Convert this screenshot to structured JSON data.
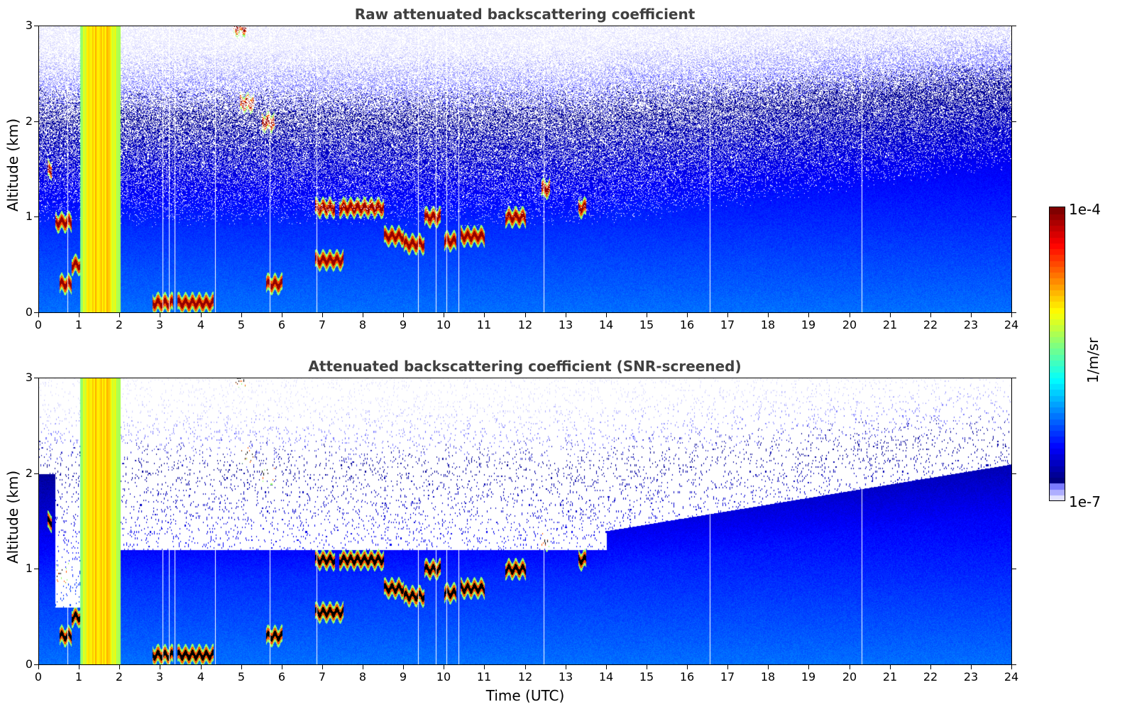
{
  "chart_data": [
    {
      "type": "heatmap",
      "title": "Raw attenuated backscattering coefficient",
      "xlabel": "",
      "ylabel": "Altitude (km)",
      "xlim": [
        0,
        24
      ],
      "ylim": [
        0,
        3
      ],
      "x_ticks": [
        "0",
        "1",
        "2",
        "3",
        "4",
        "5",
        "6",
        "7",
        "8",
        "9",
        "10",
        "11",
        "12",
        "13",
        "14",
        "15",
        "16",
        "17",
        "18",
        "19",
        "20",
        "21",
        "22",
        "23",
        "24"
      ],
      "y_ticks": [
        "0",
        "1",
        "2",
        "3"
      ],
      "screened": false,
      "features": {
        "precip_band": [
          1.0,
          2.0
        ],
        "gaps": [
          0.7,
          3.05,
          3.2,
          3.35,
          4.35,
          5.7,
          6.85,
          9.35,
          9.8,
          10.05,
          10.35,
          12.45,
          16.55,
          20.3
        ],
        "cloud_layers": [
          {
            "t": [
              0.2,
              0.3
            ],
            "alt": 1.5
          },
          {
            "t": [
              0.4,
              0.8
            ],
            "alt": 0.95
          },
          {
            "t": [
              0.8,
              1.0
            ],
            "alt": 0.5
          },
          {
            "t": [
              0.5,
              0.8
            ],
            "alt": 0.3
          },
          {
            "t": [
              2.8,
              3.3
            ],
            "alt": 0.1
          },
          {
            "t": [
              3.4,
              4.3
            ],
            "alt": 0.1
          },
          {
            "t": [
              4.95,
              5.3
            ],
            "alt": 2.2
          },
          {
            "t": [
              5.5,
              5.8
            ],
            "alt": 2.0
          },
          {
            "t": [
              5.6,
              6.0
            ],
            "alt": 0.3
          },
          {
            "t": [
              4.8,
              5.1
            ],
            "alt": 3.0
          },
          {
            "t": [
              6.8,
              7.5
            ],
            "alt": 0.55
          },
          {
            "t": [
              6.8,
              7.3
            ],
            "alt": 1.1
          },
          {
            "t": [
              7.4,
              8.5
            ],
            "alt": 1.1
          },
          {
            "t": [
              8.5,
              9.0
            ],
            "alt": 0.8
          },
          {
            "t": [
              9.0,
              9.5
            ],
            "alt": 0.72
          },
          {
            "t": [
              9.5,
              9.9
            ],
            "alt": 1.0
          },
          {
            "t": [
              10.0,
              10.3
            ],
            "alt": 0.75
          },
          {
            "t": [
              10.4,
              11.0
            ],
            "alt": 0.8
          },
          {
            "t": [
              11.5,
              12.0
            ],
            "alt": 1.0
          },
          {
            "t": [
              12.4,
              12.6
            ],
            "alt": 1.3
          },
          {
            "t": [
              13.3,
              13.5
            ],
            "alt": 1.1
          }
        ]
      }
    },
    {
      "type": "heatmap",
      "title": "Attenuated backscattering coefficient (SNR-screened)",
      "xlabel": "Time (UTC)",
      "ylabel": "Altitude (km)",
      "xlim": [
        0,
        24
      ],
      "ylim": [
        0,
        3
      ],
      "x_ticks": [
        "0",
        "1",
        "2",
        "3",
        "4",
        "5",
        "6",
        "7",
        "8",
        "9",
        "10",
        "11",
        "12",
        "13",
        "14",
        "15",
        "16",
        "17",
        "18",
        "19",
        "20",
        "21",
        "22",
        "23",
        "24"
      ],
      "y_ticks": [
        "0",
        "1",
        "2",
        "3"
      ],
      "screened": true
    }
  ],
  "colorbar": {
    "label": "1/m/sr",
    "max_label": "1e-4",
    "min_label": "1e-7",
    "range": [
      1e-07,
      0.0001
    ],
    "scale": "log",
    "colormap": "jet"
  },
  "colors": {
    "title_color": "#404040",
    "mask_color": "#ffffff"
  }
}
